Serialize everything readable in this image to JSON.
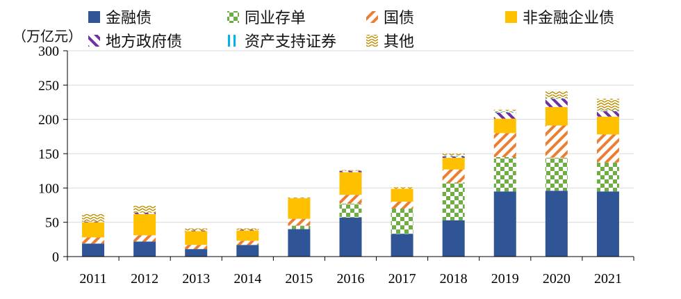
{
  "chart_data": {
    "type": "bar",
    "stacked": true,
    "unit_label": "（万亿元）",
    "categories": [
      "2011",
      "2012",
      "2013",
      "2014",
      "2015",
      "2016",
      "2017",
      "2018",
      "2019",
      "2020",
      "2021"
    ],
    "ylim": [
      0,
      300
    ],
    "yticks": [
      0,
      50,
      100,
      150,
      200,
      250,
      300
    ],
    "grid": true,
    "legend_position": "top",
    "series": [
      {
        "name": "金融债",
        "pattern": "solid",
        "color": "#2f5597",
        "values": [
          19,
          22,
          11,
          17,
          40,
          57,
          33,
          53,
          95,
          96,
          95
        ]
      },
      {
        "name": "同业存单",
        "pattern": "checker",
        "color": "#70ad47",
        "values": [
          0,
          0,
          0,
          0,
          5,
          20,
          37,
          55,
          50,
          48,
          42
        ]
      },
      {
        "name": "国债",
        "pattern": "diagonal",
        "color": "#ed7d31",
        "values": [
          9,
          9,
          6,
          6,
          10,
          13,
          10,
          19,
          35,
          47,
          41
        ]
      },
      {
        "name": "非金融企业债",
        "pattern": "solid",
        "color": "#ffc000",
        "values": [
          22,
          31,
          20,
          15,
          30,
          33,
          19,
          17,
          21,
          27,
          26
        ]
      },
      {
        "name": "地方政府债",
        "pattern": "backdiagonal",
        "color": "#7030a0",
        "values": [
          1,
          2,
          1,
          1,
          0,
          2,
          0,
          2,
          9,
          12,
          8
        ]
      },
      {
        "name": "资产支持证券",
        "pattern": "vertical",
        "color": "#00b0f0",
        "values": [
          0,
          0,
          0,
          0,
          0,
          0,
          0,
          1,
          1,
          1,
          1
        ]
      },
      {
        "name": "其他",
        "pattern": "zigzag",
        "color": "#c09000",
        "values": [
          11,
          10,
          3,
          2,
          1,
          1,
          2,
          3,
          3,
          10,
          17
        ]
      }
    ]
  }
}
